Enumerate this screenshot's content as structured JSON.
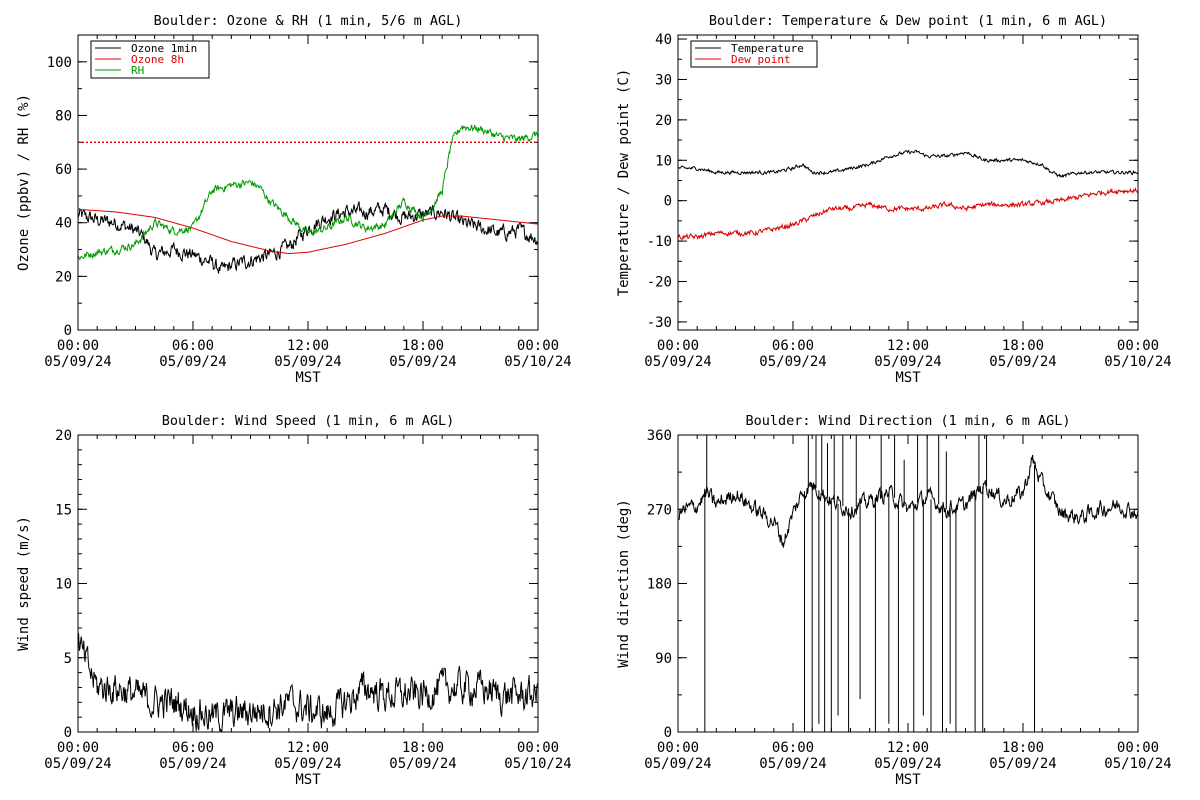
{
  "chart_data": [
    {
      "id": "ozone",
      "type": "line",
      "title": "Boulder: Ozone & RH (1 min, 5/6 m AGL)",
      "xlabel": "MST",
      "ylabel": "Ozone (ppbv) / RH (%)",
      "xlim": [
        0,
        24
      ],
      "ylim": [
        0,
        110
      ],
      "yticks": [
        0,
        20,
        40,
        60,
        80,
        100
      ],
      "yminor": 10,
      "xticks": [
        0,
        6,
        12,
        18,
        24
      ],
      "xticklabels": [
        [
          "00:00",
          "05/09/24"
        ],
        [
          "06:00",
          "05/09/24"
        ],
        [
          "12:00",
          "05/09/24"
        ],
        [
          "18:00",
          "05/09/24"
        ],
        [
          "00:00",
          "05/10/24"
        ]
      ],
      "legend": "top-left",
      "hline": {
        "y": 70,
        "color": "#dd0000",
        "dashed": true
      },
      "series": [
        {
          "name": "Ozone 1min",
          "color": "#000000",
          "noise": 2.2,
          "x": [
            0,
            1,
            2,
            3,
            3.5,
            4,
            5,
            6,
            7,
            7.5,
            8,
            9,
            10,
            11,
            12,
            13,
            14,
            15,
            16,
            17,
            18,
            19,
            20,
            21,
            22,
            23,
            24
          ],
          "y": [
            43,
            41,
            40,
            37,
            34,
            28,
            30,
            28,
            25,
            22,
            24,
            26,
            28,
            31,
            38,
            42,
            44,
            44,
            45,
            42,
            43,
            44,
            40,
            38,
            36,
            37,
            34
          ]
        },
        {
          "name": "Ozone 8h",
          "color": "#dd0000",
          "noise": 0,
          "x": [
            0,
            2,
            4,
            6,
            8,
            10,
            11,
            12,
            14,
            16,
            18,
            19,
            20,
            22,
            24
          ],
          "y": [
            45,
            44,
            42,
            38,
            33,
            29.5,
            28.5,
            29,
            32,
            36,
            41,
            42.5,
            42.5,
            41,
            39.5
          ]
        },
        {
          "name": "RH",
          "color": "#009900",
          "noise": 1.2,
          "x": [
            0,
            1,
            2,
            3,
            4,
            5,
            6,
            6.5,
            7,
            8,
            9,
            9.5,
            10,
            11,
            12,
            13,
            14,
            15,
            16,
            17,
            18,
            18.5,
            19,
            19.5,
            20,
            21,
            22,
            23,
            24
          ],
          "y": [
            27,
            29,
            30,
            32,
            40,
            37,
            38,
            45,
            52,
            54,
            55,
            53,
            48,
            42,
            36,
            38,
            42,
            38,
            39,
            48,
            42,
            46,
            52,
            70,
            76,
            75,
            72,
            71,
            73
          ]
        }
      ]
    },
    {
      "id": "temp",
      "type": "line",
      "title": "Boulder: Temperature & Dew point (1 min, 6 m AGL)",
      "xlabel": "MST",
      "ylabel": "Temperature / Dew point (C)",
      "xlim": [
        0,
        24
      ],
      "ylim": [
        -32,
        41
      ],
      "yticks": [
        -30,
        -20,
        -10,
        0,
        10,
        20,
        30,
        40
      ],
      "yminor": 5,
      "xticks": [
        0,
        6,
        12,
        18,
        24
      ],
      "xticklabels": [
        [
          "00:00",
          "05/09/24"
        ],
        [
          "06:00",
          "05/09/24"
        ],
        [
          "12:00",
          "05/09/24"
        ],
        [
          "18:00",
          "05/09/24"
        ],
        [
          "00:00",
          "05/10/24"
        ]
      ],
      "legend": "top-left",
      "series": [
        {
          "name": "Temperature",
          "color": "#000000",
          "noise": 0.35,
          "x": [
            0,
            1,
            2,
            3,
            4,
            5,
            6,
            6.5,
            7,
            8,
            9,
            10,
            11,
            12,
            12.5,
            13,
            14,
            15,
            16,
            17,
            18,
            19,
            19.5,
            20,
            21,
            22,
            23,
            24
          ],
          "y": [
            8,
            8,
            7,
            7,
            7,
            7,
            8,
            9,
            7,
            7,
            8,
            9,
            11,
            12,
            12,
            11,
            11,
            12,
            10,
            10,
            10,
            9,
            7,
            6,
            7,
            7,
            7,
            7
          ]
        },
        {
          "name": "Dew point",
          "color": "#dd0000",
          "noise": 0.5,
          "x": [
            0,
            1,
            2,
            3,
            4,
            5,
            6,
            7,
            8,
            9,
            10,
            11,
            12,
            13,
            14,
            15,
            16,
            17,
            18,
            19,
            20,
            21,
            22,
            23,
            24
          ],
          "y": [
            -9,
            -9,
            -8,
            -8,
            -8,
            -7,
            -6,
            -4,
            -2,
            -2,
            -1,
            -2,
            -2,
            -2,
            -1,
            -2,
            -1,
            -1,
            -1,
            -0.5,
            0,
            1,
            2,
            2.5,
            2.5
          ]
        }
      ]
    },
    {
      "id": "wspd",
      "type": "line",
      "title": "Boulder: Wind Speed (1 min, 6 m AGL)",
      "xlabel": "MST",
      "ylabel": "Wind speed (m/s)",
      "xlim": [
        0,
        24
      ],
      "ylim": [
        0,
        20
      ],
      "yticks": [
        0,
        5,
        10,
        15,
        20
      ],
      "yminor": 1,
      "xticks": [
        0,
        6,
        12,
        18,
        24
      ],
      "xticklabels": [
        [
          "00:00",
          "05/09/24"
        ],
        [
          "06:00",
          "05/09/24"
        ],
        [
          "12:00",
          "05/09/24"
        ],
        [
          "18:00",
          "05/09/24"
        ],
        [
          "00:00",
          "05/10/24"
        ]
      ],
      "legend": "none",
      "series": [
        {
          "name": "",
          "color": "#000000",
          "noise": 0.9,
          "floor": 0,
          "x": [
            0,
            0.3,
            1,
            2,
            3,
            4,
            5,
            6,
            7,
            8,
            9,
            10,
            11,
            12,
            13,
            14,
            15,
            16,
            17,
            18,
            19,
            20,
            21,
            22,
            23,
            24
          ],
          "y": [
            6,
            5,
            3,
            3,
            2.5,
            2,
            2,
            1.5,
            1,
            1.2,
            1.4,
            1.5,
            2,
            1.5,
            1.2,
            2,
            3,
            2.5,
            2.5,
            2.5,
            3,
            3,
            3,
            2.5,
            2.5,
            2.5
          ]
        }
      ]
    },
    {
      "id": "wdir",
      "type": "line",
      "title": "Boulder: Wind Direction (1 min, 6 m AGL)",
      "xlabel": "MST",
      "ylabel": "Wind direction (deg)",
      "xlim": [
        0,
        24
      ],
      "ylim": [
        0,
        360
      ],
      "yticks": [
        0,
        90,
        180,
        270,
        360
      ],
      "yminor": 45,
      "xticks": [
        0,
        6,
        12,
        18,
        24
      ],
      "xticklabels": [
        [
          "00:00",
          "05/09/24"
        ],
        [
          "06:00",
          "05/09/24"
        ],
        [
          "12:00",
          "05/09/24"
        ],
        [
          "18:00",
          "05/09/24"
        ],
        [
          "00:00",
          "05/10/24"
        ]
      ],
      "legend": "none",
      "series": [
        {
          "name": "",
          "color": "#000000",
          "noise": 8,
          "floor": 0,
          "ceil": 360,
          "x": [
            0,
            1,
            1.5,
            2,
            3,
            4,
            5,
            5.5,
            6,
            6.5,
            7,
            8,
            9,
            10,
            11,
            12,
            13,
            14,
            15,
            16,
            17,
            18,
            18.5,
            19,
            20,
            21,
            22,
            23,
            24
          ],
          "y": [
            265,
            275,
            290,
            275,
            290,
            270,
            255,
            230,
            265,
            290,
            300,
            280,
            270,
            280,
            290,
            270,
            285,
            270,
            275,
            300,
            280,
            290,
            330,
            300,
            265,
            260,
            270,
            275,
            265
          ]
        }
      ],
      "spikes": [
        {
          "x": 1.4,
          "y": 0
        },
        {
          "x": 1.5,
          "y": 360
        },
        {
          "x": 6.6,
          "y": 0
        },
        {
          "x": 6.8,
          "y": 360
        },
        {
          "x": 7.0,
          "y": 0
        },
        {
          "x": 7.2,
          "y": 360
        },
        {
          "x": 7.35,
          "y": 10
        },
        {
          "x": 7.5,
          "y": 360
        },
        {
          "x": 7.65,
          "y": 0
        },
        {
          "x": 7.8,
          "y": 350
        },
        {
          "x": 8.0,
          "y": 0
        },
        {
          "x": 8.15,
          "y": 360
        },
        {
          "x": 8.35,
          "y": 20
        },
        {
          "x": 8.6,
          "y": 360
        },
        {
          "x": 8.9,
          "y": 0
        },
        {
          "x": 9.3,
          "y": 360
        },
        {
          "x": 9.5,
          "y": 40
        },
        {
          "x": 10.3,
          "y": 0
        },
        {
          "x": 10.6,
          "y": 360
        },
        {
          "x": 11.0,
          "y": 10
        },
        {
          "x": 11.3,
          "y": 360
        },
        {
          "x": 11.5,
          "y": 0
        },
        {
          "x": 11.8,
          "y": 330
        },
        {
          "x": 12.3,
          "y": 0
        },
        {
          "x": 12.5,
          "y": 360
        },
        {
          "x": 12.8,
          "y": 20
        },
        {
          "x": 13.0,
          "y": 360
        },
        {
          "x": 13.2,
          "y": 0
        },
        {
          "x": 13.6,
          "y": 360
        },
        {
          "x": 13.8,
          "y": 0
        },
        {
          "x": 14.0,
          "y": 340
        },
        {
          "x": 14.2,
          "y": 10
        },
        {
          "x": 14.5,
          "y": 0
        },
        {
          "x": 15.5,
          "y": 0
        },
        {
          "x": 15.7,
          "y": 360
        },
        {
          "x": 15.9,
          "y": 0
        },
        {
          "x": 16.1,
          "y": 360
        },
        {
          "x": 18.6,
          "y": 0
        }
      ]
    }
  ]
}
